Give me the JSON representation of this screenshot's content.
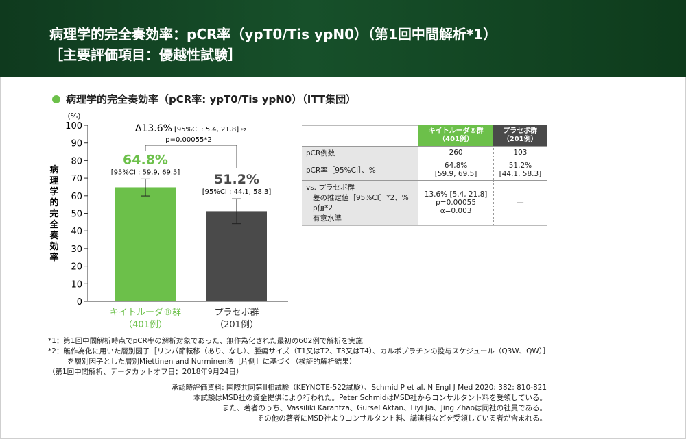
{
  "header": {
    "title_line1": "病理学的完全奏効率：pCR率（ypT0/Tis ypN0）（第1回中間解析*1）",
    "title_line2": "［主要評価項目：優越性試験］"
  },
  "subtitle": "病理学的完全奏効率（pCR率: ypT0/Tis ypN0）（ITT集団）",
  "chart_data": {
    "type": "bar",
    "ylabel": "病理学的完全奏効率",
    "yunit": "(%)",
    "ylim": [
      0,
      100
    ],
    "yticks": [
      0,
      10,
      20,
      30,
      40,
      50,
      60,
      70,
      80,
      90,
      100
    ],
    "categories": [
      "キイトルーダ®群",
      "プラセボ群"
    ],
    "category_n": [
      "（401例）",
      "（201例）"
    ],
    "values": [
      64.8,
      51.2
    ],
    "ci_low": [
      59.9,
      44.1
    ],
    "ci_high": [
      69.5,
      58.3
    ],
    "value_labels": [
      "64.8%",
      "51.2%"
    ],
    "ci_labels": [
      "[95%CI : 59.9, 69.5]",
      "[95%CI : 44.1, 58.3]"
    ],
    "colors": [
      "#6cc04a",
      "#4a4a4a"
    ],
    "diff_label": "Δ13.6%",
    "diff_ci": "[95%CI : 5.4,  21.8]",
    "diff_note": "*2",
    "p_label": "p=0.00055*2"
  },
  "table": {
    "headers": [
      [
        "キイトルーダ®群",
        "（401例）"
      ],
      [
        "プラセボ群",
        "（201例）"
      ]
    ],
    "rows": [
      {
        "label": [
          "pCR例数"
        ],
        "v1": [
          "260"
        ],
        "v2": [
          "103"
        ]
      },
      {
        "label": [
          "pCR率［95%CI］、%"
        ],
        "v1": [
          "64.8%",
          "[59.9, 69.5]"
        ],
        "v2": [
          "51.2%",
          "[44.1, 58.3]"
        ]
      },
      {
        "label": [
          "vs. プラセボ群",
          "差の推定値［95%CI］*2、%",
          "p値*2",
          "有意水準"
        ],
        "v1": [
          "13.6% [5.4, 21.8]",
          "p=0.00055",
          "α=0.003"
        ],
        "v2": [
          "—"
        ]
      }
    ]
  },
  "footnotes": [
    "*1：第1回中間解析時点でpCR率の解析対象であった、無作為化された最初の602例で解析を実施",
    "*2：無作為化に用いた層別因子［リンパ節転移（あり、なし）、腫瘍サイズ（T1又はT2、T3又はT4）、カルボプラチンの投与スケジュール（Q3W、QW）］",
    "を層別因子とした層別Miettinen and Nurminen法［片側］に基づく（検証的解析結果）",
    "（第1回中間解析、データカットオフ日：2018年9月24日）"
  ],
  "source": [
    "承認時評価資料: 国際共同第Ⅲ相試験（KEYNOTE-522試験）、Schmid P et al. N Engl J Med 2020; 382: 810-821",
    "本試験はMSD社の資金提供により行われた。Peter SchmidはMSD社からコンサルタント料を受領している。",
    "また、著者のうち、Vassiliki Karantza、Gursel Aktan、Liyi Jia、Jing Zhaoは同社の社員である。",
    "その他の著者にMSD社よりコンサルタント料、講演料などを受領している者が含まれる。"
  ]
}
